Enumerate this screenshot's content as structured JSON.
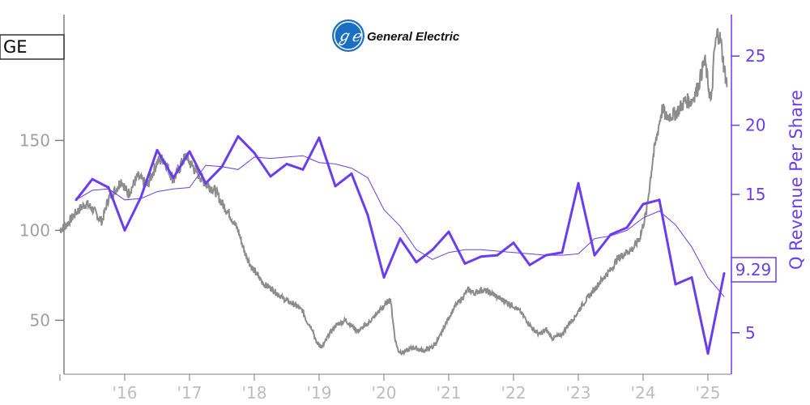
{
  "colors": {
    "price": "#8c8c8c",
    "revenue": "#6a3df0",
    "left_axis": "#7f7f7f",
    "right_axis": "#6a3df0",
    "logo_blue": "#1a6fc2"
  },
  "ticker": "GE",
  "logo": {
    "text": "General Electric",
    "icon": "ge-monogram-icon"
  },
  "chart_data": {
    "type": "line",
    "ylabel_right": "Q Revenue Per Share",
    "x_ticks": [
      "'16",
      "'17",
      "'18",
      "'19",
      "'20",
      "'21",
      "'22",
      "'23",
      "'24",
      "'25"
    ],
    "y_left": {
      "ticks": [
        50,
        100,
        150
      ],
      "range": [
        20,
        220
      ]
    },
    "y_right": {
      "ticks": [
        5,
        10,
        15,
        20,
        25
      ],
      "range": [
        2,
        28
      ]
    },
    "last_value_label": "9.29",
    "price_series": {
      "x": [
        2015.0,
        2015.1,
        2015.25,
        2015.4,
        2015.5,
        2015.6,
        2015.65,
        2015.75,
        2015.85,
        2015.95,
        2016.05,
        2016.2,
        2016.35,
        2016.5,
        2016.6,
        2016.7,
        2016.75,
        2016.85,
        2016.95,
        2017.0,
        2017.1,
        2017.25,
        2017.4,
        2017.5,
        2017.6,
        2017.75,
        2017.85,
        2017.95,
        2018.05,
        2018.15,
        2018.25,
        2018.35,
        2018.45,
        2018.55,
        2018.65,
        2018.75,
        2018.8,
        2018.9,
        2018.95,
        2019.05,
        2019.15,
        2019.25,
        2019.4,
        2019.5,
        2019.6,
        2019.75,
        2019.85,
        2019.95,
        2020.1,
        2020.17,
        2020.22,
        2020.3,
        2020.45,
        2020.6,
        2020.75,
        2020.85,
        2020.95,
        2021.1,
        2021.2,
        2021.3,
        2021.4,
        2021.5,
        2021.6,
        2021.7,
        2021.8,
        2021.9,
        2022.0,
        2022.1,
        2022.2,
        2022.3,
        2022.4,
        2022.5,
        2022.6,
        2022.75,
        2022.85,
        2022.95,
        2023.05,
        2023.2,
        2023.35,
        2023.5,
        2023.6,
        2023.75,
        2023.85,
        2023.95,
        2024.05,
        2024.15,
        2024.25,
        2024.3,
        2024.35,
        2024.5,
        2024.65,
        2024.75,
        2024.85,
        2024.95,
        2025.05,
        2025.1,
        2025.15,
        2025.2,
        2025.25,
        2025.3
      ],
      "y": [
        100,
        103,
        110,
        115,
        112,
        107,
        105,
        118,
        122,
        128,
        120,
        130,
        125,
        138,
        140,
        132,
        128,
        135,
        142,
        138,
        133,
        126,
        122,
        115,
        110,
        100,
        88,
        80,
        75,
        70,
        68,
        65,
        62,
        60,
        58,
        55,
        50,
        45,
        38,
        35,
        42,
        47,
        50,
        47,
        44,
        48,
        52,
        56,
        62,
        40,
        33,
        32,
        35,
        33,
        35,
        40,
        48,
        58,
        62,
        67,
        65,
        67,
        66,
        64,
        62,
        60,
        58,
        55,
        50,
        45,
        42,
        45,
        40,
        42,
        48,
        52,
        58,
        65,
        72,
        78,
        84,
        88,
        90,
        96,
        110,
        140,
        160,
        168,
        163,
        165,
        172,
        172,
        180,
        195,
        170,
        200,
        210,
        205,
        190,
        180
      ]
    },
    "revenue_series": {
      "name": "Q Revenue Per Share",
      "x": [
        2015.25,
        2015.5,
        2015.75,
        2016.0,
        2016.25,
        2016.5,
        2016.75,
        2017.0,
        2017.25,
        2017.5,
        2017.75,
        2018.0,
        2018.25,
        2018.5,
        2018.75,
        2019.0,
        2019.25,
        2019.5,
        2019.75,
        2020.0,
        2020.25,
        2020.5,
        2020.75,
        2021.0,
        2021.25,
        2021.5,
        2021.75,
        2022.0,
        2022.25,
        2022.5,
        2022.75,
        2023.0,
        2023.25,
        2023.5,
        2023.75,
        2024.0,
        2024.25,
        2024.5,
        2024.75,
        2025.0,
        2025.25
      ],
      "y": [
        14.6,
        16.1,
        15.5,
        12.4,
        14.8,
        18.2,
        16.2,
        18.1,
        15.8,
        17.0,
        19.2,
        18.0,
        16.3,
        17.2,
        16.8,
        19.1,
        15.6,
        16.5,
        13.5,
        9.0,
        11.8,
        10.1,
        11.0,
        12.3,
        10.0,
        10.5,
        10.6,
        11.5,
        9.9,
        10.6,
        10.8,
        15.8,
        10.6,
        12.1,
        12.6,
        14.3,
        14.6,
        8.5,
        9.0,
        3.5,
        9.29
      ]
    },
    "revenue_avg_series": {
      "x": [
        2015.25,
        2015.5,
        2015.75,
        2016.0,
        2016.25,
        2016.5,
        2016.75,
        2017.0,
        2017.25,
        2017.5,
        2017.75,
        2018.0,
        2018.25,
        2018.5,
        2018.75,
        2019.0,
        2019.25,
        2019.5,
        2019.75,
        2020.0,
        2020.25,
        2020.5,
        2020.75,
        2021.0,
        2021.25,
        2021.5,
        2021.75,
        2022.0,
        2022.25,
        2022.5,
        2022.75,
        2023.0,
        2023.25,
        2023.5,
        2023.75,
        2024.0,
        2024.25,
        2024.5,
        2024.75,
        2025.0,
        2025.25
      ],
      "y": [
        14.6,
        15.3,
        15.4,
        14.6,
        14.7,
        15.2,
        15.4,
        15.5,
        17.1,
        17.0,
        16.8,
        17.7,
        17.6,
        17.7,
        17.8,
        17.3,
        17.2,
        16.9,
        16.2,
        13.9,
        12.7,
        11.0,
        10.3,
        10.8,
        11.0,
        11.0,
        10.9,
        10.8,
        10.7,
        10.6,
        10.6,
        10.7,
        11.8,
        12.0,
        12.4,
        13.3,
        13.8,
        12.8,
        11.2,
        9.0,
        7.6
      ]
    }
  }
}
